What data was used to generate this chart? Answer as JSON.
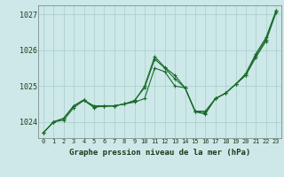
{
  "title": "Graphe pression niveau de la mer (hPa)",
  "background_color": "#cce8e8",
  "grid_color": "#aacccc",
  "line_color": "#1a6b2a",
  "x_labels": [
    "0",
    "1",
    "2",
    "3",
    "4",
    "5",
    "6",
    "7",
    "8",
    "9",
    "10",
    "11",
    "12",
    "13",
    "14",
    "15",
    "16",
    "17",
    "18",
    "19",
    "20",
    "21",
    "22",
    "23"
  ],
  "ylim": [
    1023.55,
    1027.25
  ],
  "yticks": [
    1024,
    1025,
    1026,
    1027
  ],
  "series": [
    [
      1023.7,
      1024.0,
      1024.05,
      1024.4,
      1024.6,
      1024.4,
      1024.45,
      1024.45,
      1024.5,
      1024.55,
      1024.65,
      1025.5,
      1025.4,
      1025.0,
      1024.95,
      1024.3,
      1024.3,
      1024.65,
      1024.8,
      1025.05,
      1025.3,
      1025.8,
      1026.25,
      1027.05
    ],
    [
      1023.7,
      1024.0,
      1024.1,
      1024.45,
      1024.6,
      1024.45,
      1024.45,
      1024.45,
      1024.5,
      1024.6,
      1024.95,
      1025.75,
      1025.5,
      1025.2,
      1024.95,
      1024.3,
      1024.25,
      1024.65,
      1024.8,
      1025.05,
      1025.3,
      1025.85,
      1026.3,
      1027.1
    ],
    [
      1023.7,
      1024.0,
      1024.1,
      1024.45,
      1024.62,
      1024.42,
      1024.43,
      1024.44,
      1024.5,
      1024.58,
      1025.0,
      1025.82,
      1025.52,
      1025.3,
      1024.95,
      1024.28,
      1024.22,
      1024.65,
      1024.8,
      1025.05,
      1025.35,
      1025.9,
      1026.35,
      1027.1
    ]
  ]
}
